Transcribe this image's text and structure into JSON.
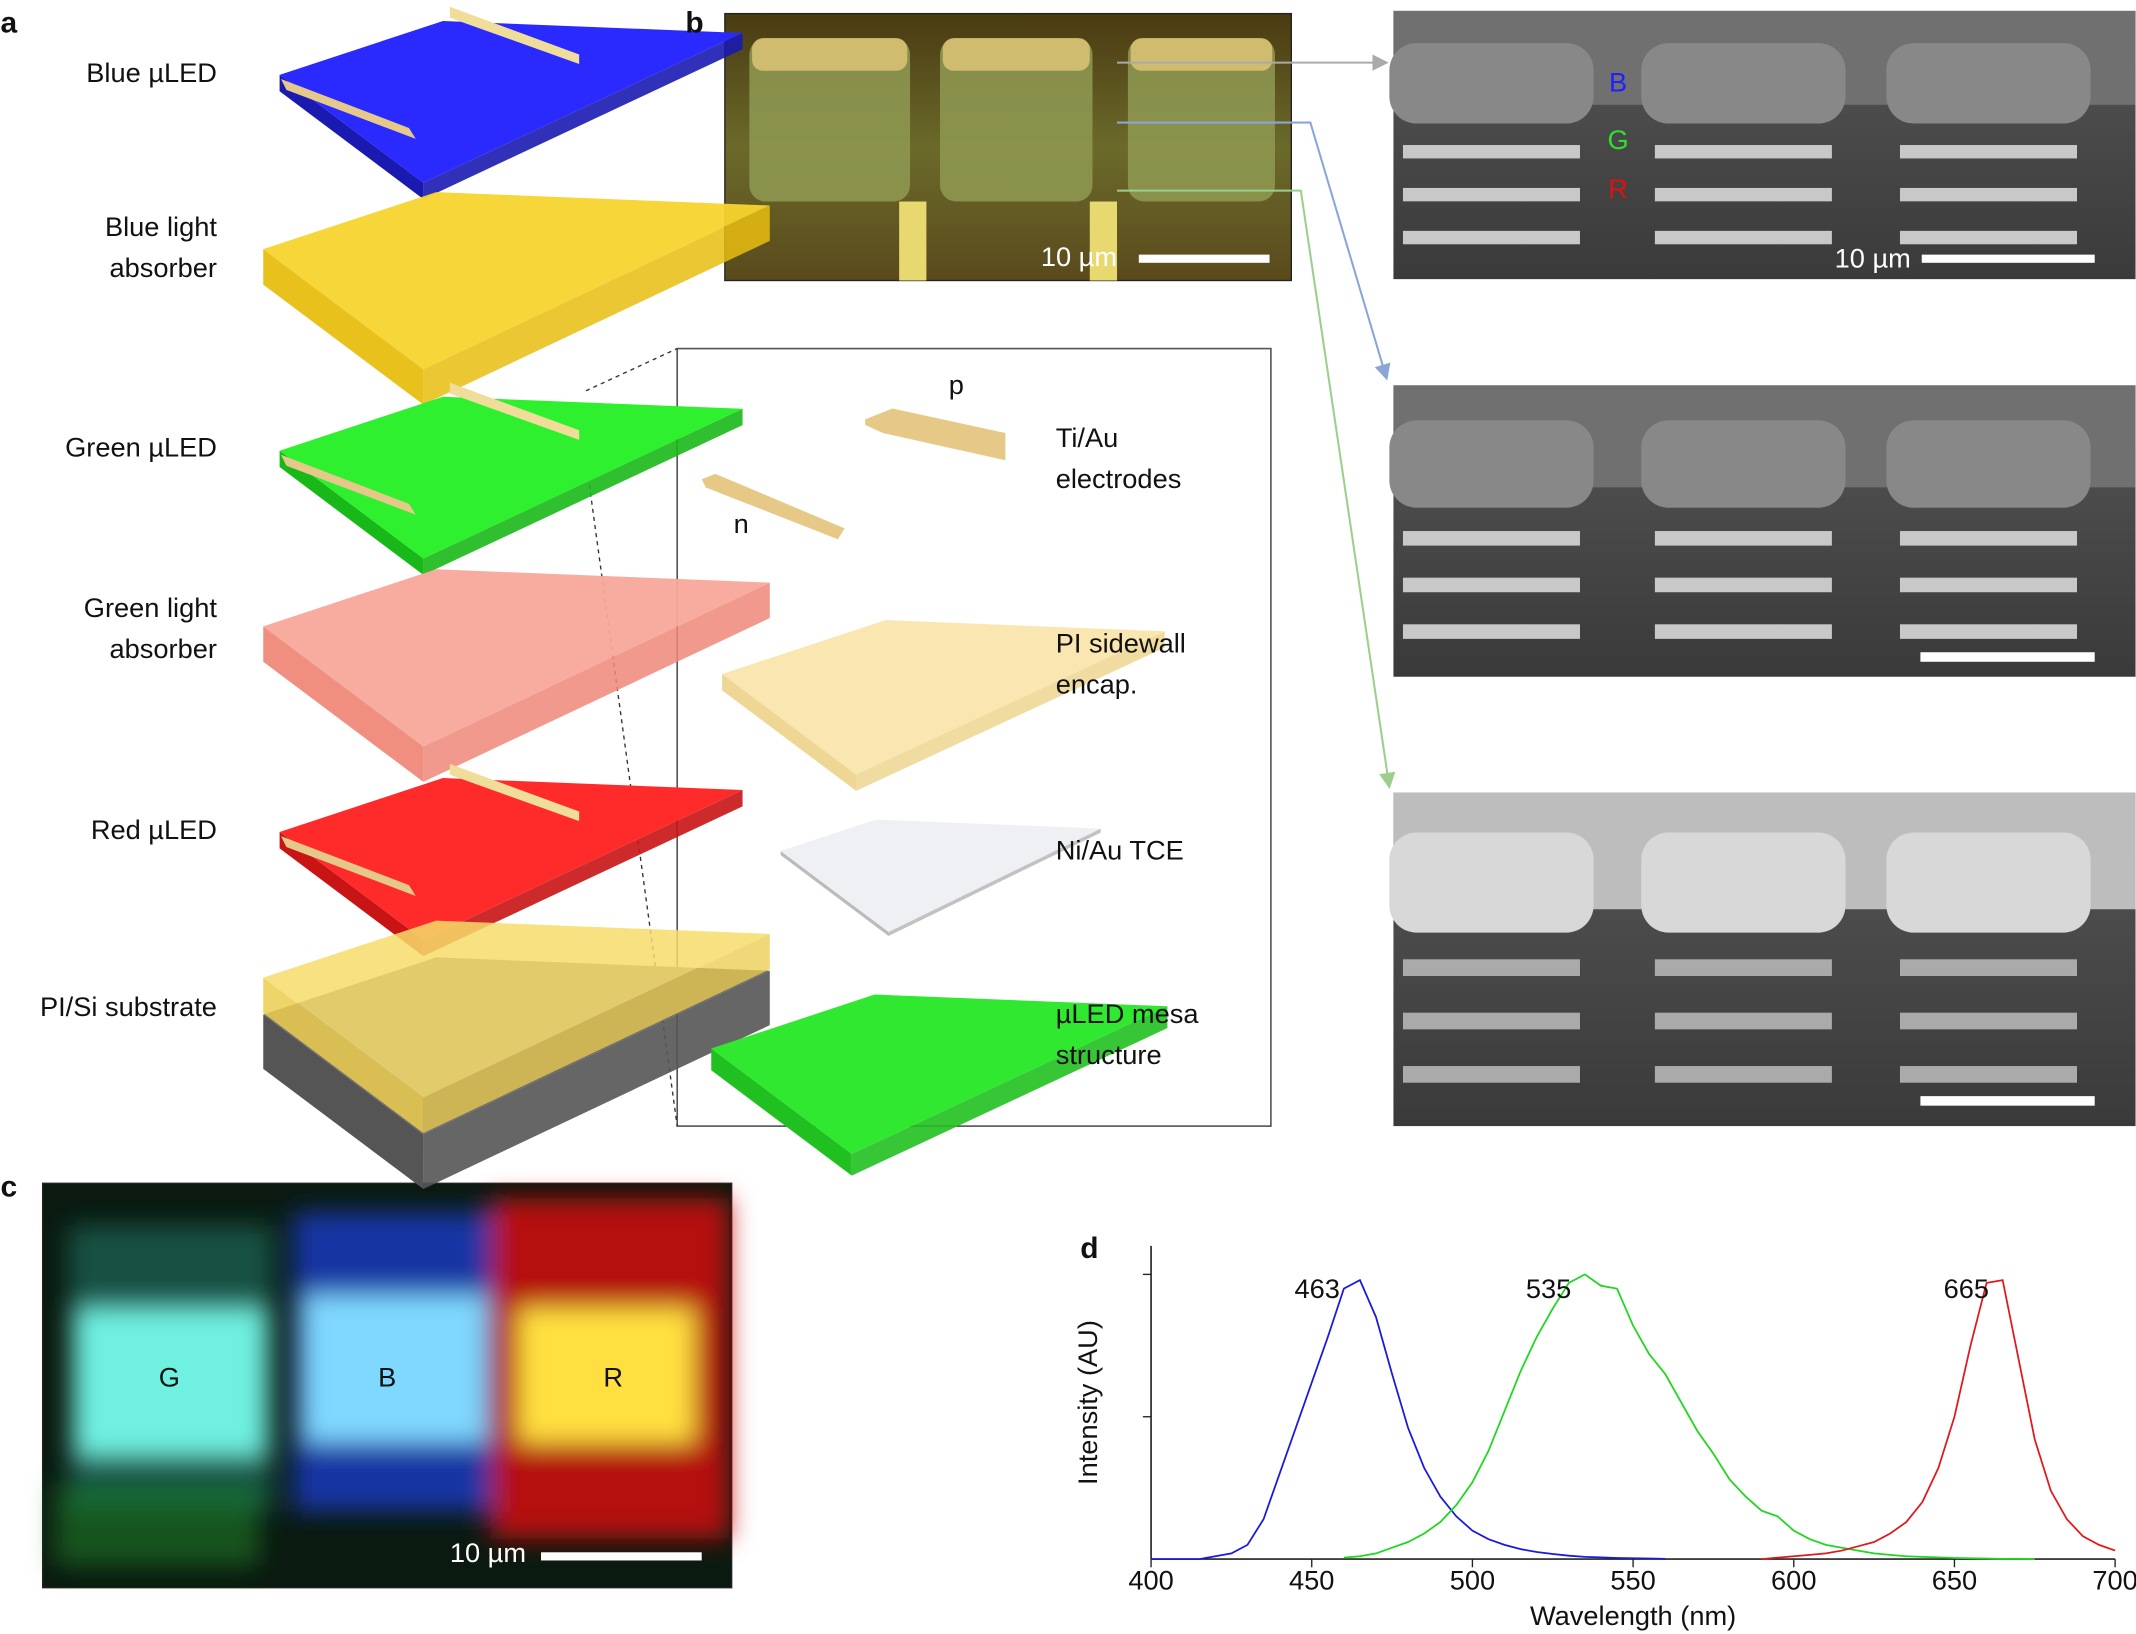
{
  "panels": {
    "a": {
      "letter": "a",
      "layers": [
        [
          "Blue µLED"
        ],
        [
          "Blue light",
          "absorber"
        ],
        [
          "Green µLED"
        ],
        [
          "Green light",
          "absorber"
        ],
        [
          "Red µLED"
        ],
        [
          "PI/Si substrate"
        ]
      ],
      "inset": {
        "p": "p",
        "n": "n",
        "labels": [
          [
            "Ti/Au",
            "electrodes"
          ],
          [
            "PI sidewall",
            "encap."
          ],
          [
            "Ni/Au TCE"
          ],
          [
            "µLED mesa",
            "structure"
          ]
        ]
      }
    },
    "b": {
      "letter": "b",
      "scale_bars": [
        "10 µm",
        "10 µm"
      ],
      "layer_labels": [
        "B",
        "G",
        "R"
      ]
    },
    "c": {
      "letter": "c",
      "pixel_labels": [
        "G",
        "B",
        "R"
      ],
      "scale_bar": "10 µm"
    },
    "d": {
      "letter": "d"
    }
  },
  "chart_data": {
    "type": "line",
    "xlabel": "Wavelength (nm)",
    "ylabel": "Intensity (AU)",
    "x": [
      400,
      405,
      410,
      415,
      420,
      425,
      430,
      435,
      440,
      445,
      450,
      455,
      460,
      465,
      470,
      475,
      480,
      485,
      490,
      495,
      500,
      505,
      510,
      515,
      520,
      525,
      530,
      535,
      540,
      545,
      550,
      555,
      560,
      565,
      570,
      575,
      580,
      585,
      590,
      595,
      600,
      605,
      610,
      615,
      620,
      625,
      630,
      635,
      640,
      645,
      650,
      655,
      660,
      665,
      670,
      675,
      680,
      685,
      690,
      695,
      700
    ],
    "series": [
      {
        "name": "Blue",
        "color": "#1a1adc",
        "values": [
          0,
          0,
          0,
          0,
          0.01,
          0.02,
          0.05,
          0.14,
          0.3,
          0.46,
          0.62,
          0.78,
          0.95,
          0.98,
          0.85,
          0.65,
          0.46,
          0.32,
          0.22,
          0.15,
          0.1,
          0.07,
          0.05,
          0.035,
          0.025,
          0.018,
          0.012,
          0.008,
          0.006,
          0.004,
          0.003,
          0.002,
          0.001,
          null,
          null,
          null,
          null,
          null,
          null,
          null,
          null,
          null,
          null,
          null,
          null,
          null,
          null,
          null,
          null,
          null,
          null,
          null,
          null,
          null,
          null,
          null,
          null,
          null,
          null,
          null,
          null
        ]
      },
      {
        "name": "Green",
        "color": "#1ed81e",
        "values": [
          null,
          null,
          null,
          null,
          null,
          null,
          null,
          null,
          null,
          null,
          null,
          null,
          0.005,
          0.01,
          0.02,
          0.04,
          0.06,
          0.09,
          0.13,
          0.19,
          0.27,
          0.38,
          0.52,
          0.66,
          0.78,
          0.88,
          0.97,
          1.0,
          0.96,
          0.95,
          0.82,
          0.72,
          0.65,
          0.55,
          0.45,
          0.37,
          0.28,
          0.22,
          0.17,
          0.15,
          0.1,
          0.07,
          0.05,
          0.04,
          0.03,
          0.02,
          0.015,
          0.01,
          0.008,
          0.006,
          0.004,
          0.003,
          0.002,
          0.001,
          0.001,
          0,
          null,
          null,
          null,
          null,
          null
        ]
      },
      {
        "name": "Red",
        "color": "#e01a1a",
        "values": [
          null,
          null,
          null,
          null,
          null,
          null,
          null,
          null,
          null,
          null,
          null,
          null,
          null,
          null,
          null,
          null,
          null,
          null,
          null,
          null,
          null,
          null,
          null,
          null,
          null,
          null,
          null,
          null,
          null,
          null,
          null,
          null,
          null,
          null,
          null,
          null,
          null,
          null,
          0,
          0.005,
          0.01,
          0.015,
          0.02,
          0.03,
          0.045,
          0.06,
          0.09,
          0.13,
          0.2,
          0.32,
          0.5,
          0.75,
          0.97,
          0.98,
          0.7,
          0.42,
          0.24,
          0.14,
          0.08,
          0.05,
          0.03
        ]
      }
    ],
    "peaks": [
      463,
      535,
      665
    ],
    "xlim": [
      400,
      700
    ],
    "xticks": [
      400,
      450,
      500,
      550,
      600,
      650,
      700
    ],
    "ylim": [
      0,
      1.1
    ],
    "yticks": [
      0.5,
      1
    ],
    "grid": false
  }
}
